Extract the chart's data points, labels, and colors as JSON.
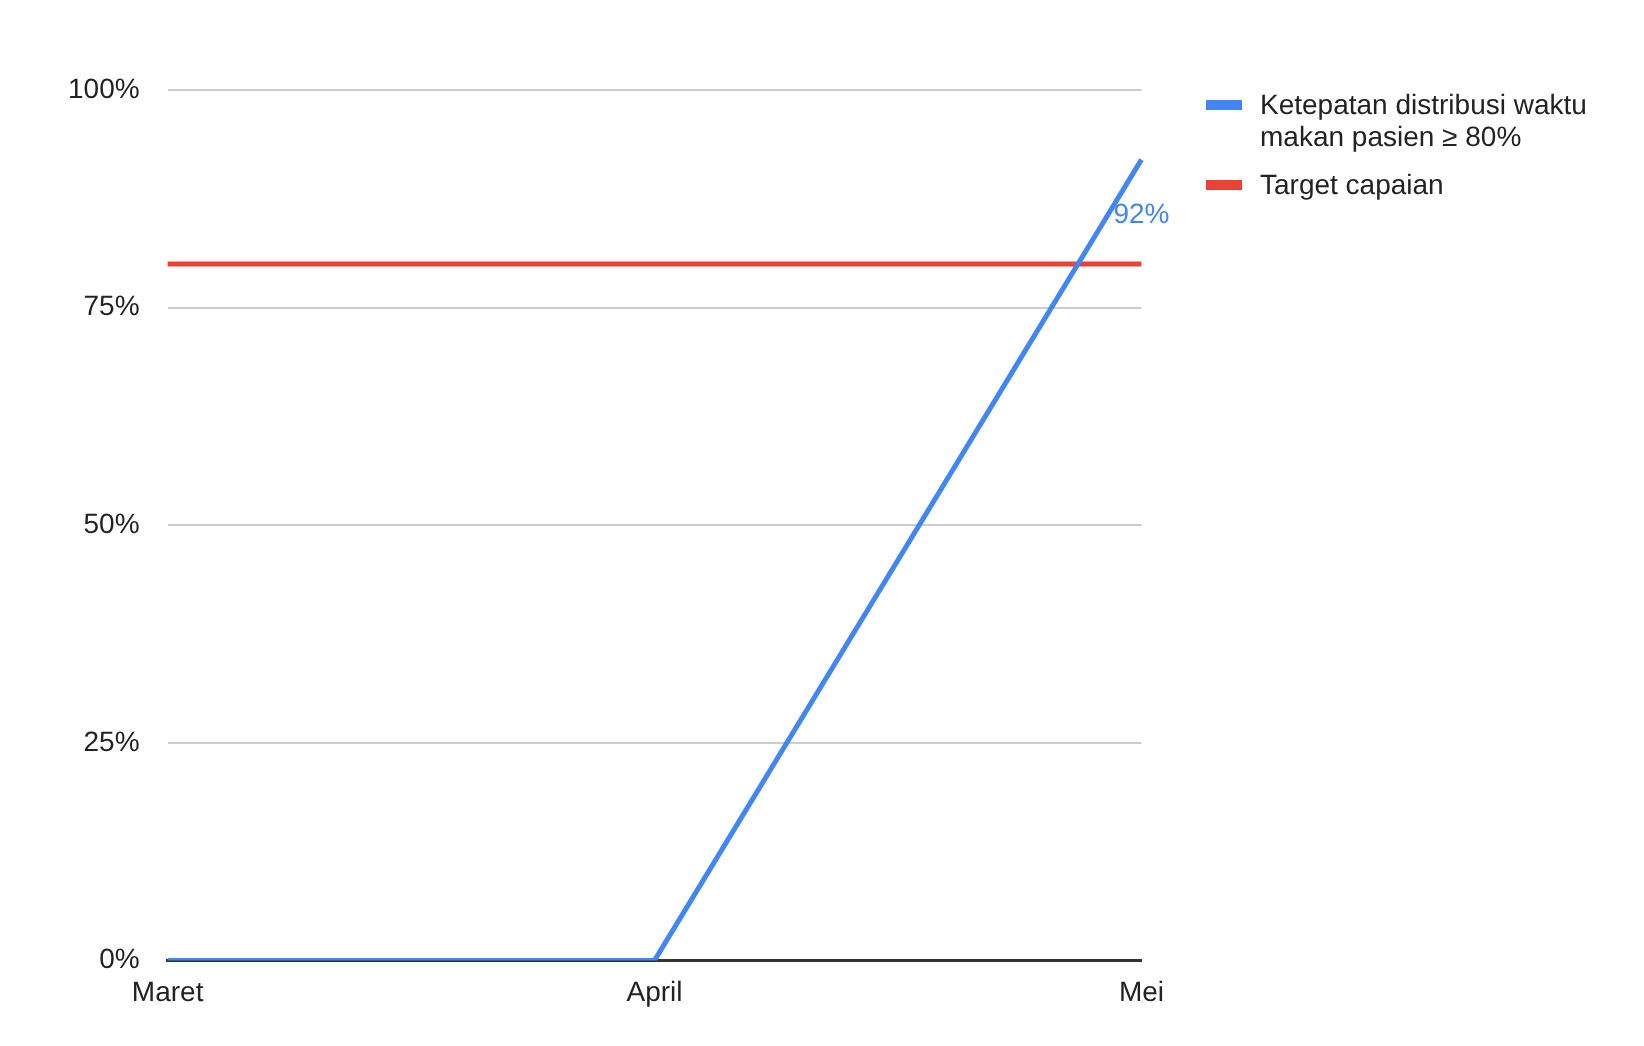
{
  "chart_data": {
    "type": "line",
    "categories": [
      "Maret",
      "April",
      "Mei"
    ],
    "series": [
      {
        "name": "Ketepatan distribusi waktu makan pasien ≥ 80%",
        "color": "#4285f4",
        "values": [
          0,
          0,
          92
        ],
        "value_labels": [
          null,
          null,
          "92%"
        ]
      },
      {
        "name": "Target capaian",
        "color": "#ea4335",
        "values": [
          80,
          80,
          80
        ]
      }
    ],
    "ylim": [
      0,
      100
    ],
    "yticks": [
      {
        "value": 0,
        "label": "0%"
      },
      {
        "value": 25,
        "label": "25%"
      },
      {
        "value": 50,
        "label": "50%"
      },
      {
        "value": 75,
        "label": "75%"
      },
      {
        "value": 100,
        "label": "100%"
      }
    ],
    "grid": "y",
    "legend": "right",
    "marker": "none"
  }
}
